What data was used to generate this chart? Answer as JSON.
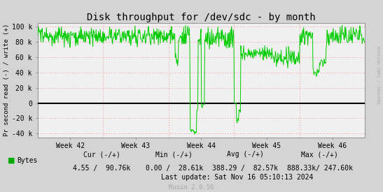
{
  "title": "Disk throughput for /dev/sdc - by month",
  "ylabel": "Pr second read (-) / write (+)",
  "yticks": [
    -40000,
    -20000,
    0,
    20000,
    40000,
    60000,
    80000,
    100000
  ],
  "ytick_labels": [
    "-40 k",
    "-20 k",
    "0",
    "20 k",
    "40 k",
    "60 k",
    "80 k",
    "100 k"
  ],
  "ylim": [
    -45000,
    105000
  ],
  "xtick_labels": [
    "Week 42",
    "Week 43",
    "Week 44",
    "Week 45",
    "Week 46"
  ],
  "bg_color": "#d4d4d4",
  "plot_bg_color": "#f0f0f0",
  "line_color": "#00cc00",
  "grid_color": "#ff8888",
  "zero_line_color": "#000000",
  "border_color": "#999999",
  "legend_label": "Bytes",
  "legend_color": "#00aa00",
  "cur_neg": "4.55",
  "cur_pos": "90.76k",
  "min_neg": "0.00",
  "min_pos": "28.61k",
  "avg_neg": "388.29",
  "avg_pos": "82.57k",
  "max_neg": "888.33k/",
  "max_pos": "247.60k",
  "last_update": "Last update: Sat Nov 16 05:10:13 2024",
  "munin_version": "Munin 2.0.56",
  "rrdtool_text": "RRDTOOL / TOBI OETIKER",
  "title_fontsize": 10,
  "axis_fontsize": 7,
  "legend_fontsize": 7.5,
  "annotation_fontsize": 7
}
